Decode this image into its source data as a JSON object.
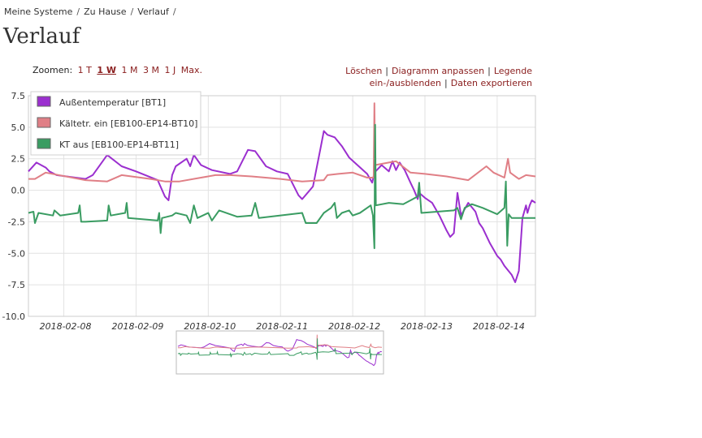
{
  "breadcrumb": [
    "Meine Systeme",
    "Zu Hause",
    "Verlauf"
  ],
  "page_title": "Verlauf",
  "zoom": {
    "label": "Zoomen:",
    "options": [
      "1 T",
      "1 W",
      "1 M",
      "3 M",
      "1 J",
      "Max."
    ],
    "active": "1 W"
  },
  "actions": [
    "Löschen",
    "Diagramm anpassen",
    "Legende ein-/ausblenden",
    "Daten exportieren"
  ],
  "colors": {
    "purple": "#9b2fcf",
    "pink": "#e07f86",
    "green": "#3a9c62",
    "link": "#8b2020"
  },
  "chart_data": {
    "type": "line",
    "title": "",
    "ylim": [
      -10,
      7.5
    ],
    "yticks": [
      "7.5",
      "5.0",
      "2.5",
      "0.0",
      "-2.5",
      "-5.0",
      "-7.5",
      "-10.0"
    ],
    "ytick_values": [
      7.5,
      5.0,
      2.5,
      0.0,
      -2.5,
      -5.0,
      -7.5,
      -10.0
    ],
    "xlim": [
      -0.49,
      6.53
    ],
    "xticks": [
      "2018-02-08",
      "2018-02-09",
      "2018-02-10",
      "2018-02-11",
      "2018-02-12",
      "2018-02-13",
      "2018-02-14"
    ],
    "xtick_values": [
      0,
      1,
      2,
      3,
      4,
      5,
      6
    ],
    "grid": true,
    "legend_position": "top-left",
    "series": [
      {
        "name": "Außentemperatur [BT1]",
        "color": "#9b2fcf",
        "points": [
          [
            -0.49,
            1.5
          ],
          [
            -0.38,
            2.2
          ],
          [
            -0.25,
            1.8
          ],
          [
            -0.2,
            1.5
          ],
          [
            -0.1,
            1.2
          ],
          [
            0.3,
            0.9
          ],
          [
            0.4,
            1.2
          ],
          [
            0.6,
            2.8
          ],
          [
            0.8,
            1.9
          ],
          [
            1.0,
            1.5
          ],
          [
            1.3,
            0.8
          ],
          [
            1.4,
            -0.5
          ],
          [
            1.45,
            -0.8
          ],
          [
            1.5,
            1.2
          ],
          [
            1.55,
            1.9
          ],
          [
            1.7,
            2.5
          ],
          [
            1.75,
            1.9
          ],
          [
            1.8,
            2.8
          ],
          [
            1.9,
            2.0
          ],
          [
            2.05,
            1.6
          ],
          [
            2.3,
            1.3
          ],
          [
            2.4,
            1.5
          ],
          [
            2.55,
            3.2
          ],
          [
            2.65,
            3.1
          ],
          [
            2.8,
            1.9
          ],
          [
            2.95,
            1.5
          ],
          [
            3.1,
            1.3
          ],
          [
            3.25,
            -0.4
          ],
          [
            3.3,
            -0.7
          ],
          [
            3.45,
            0.3
          ],
          [
            3.55,
            3.2
          ],
          [
            3.6,
            4.7
          ],
          [
            3.65,
            4.4
          ],
          [
            3.75,
            4.2
          ],
          [
            3.85,
            3.5
          ],
          [
            3.95,
            2.6
          ],
          [
            4.2,
            1.3
          ],
          [
            4.27,
            0.6
          ],
          [
            4.3,
            1.4
          ],
          [
            4.4,
            2.0
          ],
          [
            4.5,
            1.5
          ],
          [
            4.55,
            2.3
          ],
          [
            4.6,
            1.6
          ],
          [
            4.65,
            2.2
          ],
          [
            4.72,
            1.6
          ],
          [
            4.8,
            0.6
          ],
          [
            4.85,
            0.0
          ],
          [
            4.9,
            -0.7
          ],
          [
            4.92,
            -0.2
          ],
          [
            5.0,
            -0.6
          ],
          [
            5.1,
            -1.0
          ],
          [
            5.2,
            -2.0
          ],
          [
            5.3,
            -3.2
          ],
          [
            5.35,
            -3.7
          ],
          [
            5.4,
            -3.4
          ],
          [
            5.45,
            -0.2
          ],
          [
            5.5,
            -2.0
          ],
          [
            5.55,
            -1.5
          ],
          [
            5.6,
            -1.0
          ],
          [
            5.7,
            -1.7
          ],
          [
            5.75,
            -2.6
          ],
          [
            5.8,
            -3.0
          ],
          [
            5.9,
            -4.2
          ],
          [
            6.0,
            -5.2
          ],
          [
            6.05,
            -5.5
          ],
          [
            6.1,
            -6.0
          ],
          [
            6.2,
            -6.7
          ],
          [
            6.25,
            -7.3
          ],
          [
            6.3,
            -6.4
          ],
          [
            6.35,
            -2.2
          ],
          [
            6.4,
            -1.2
          ],
          [
            6.42,
            -1.8
          ],
          [
            6.45,
            -1.2
          ],
          [
            6.48,
            -0.8
          ],
          [
            6.53,
            -1.0
          ]
        ]
      },
      {
        "name": "Kältetr. ein [EB100-EP14-BT10]",
        "color": "#e07f86",
        "points": [
          [
            -0.49,
            0.9
          ],
          [
            -0.4,
            0.9
          ],
          [
            -0.25,
            1.4
          ],
          [
            0.3,
            0.8
          ],
          [
            0.6,
            0.7
          ],
          [
            0.8,
            1.2
          ],
          [
            1.2,
            0.9
          ],
          [
            1.4,
            0.7
          ],
          [
            1.6,
            0.7
          ],
          [
            1.9,
            1.0
          ],
          [
            2.1,
            1.2
          ],
          [
            2.3,
            1.2
          ],
          [
            2.6,
            1.1
          ],
          [
            3.0,
            0.9
          ],
          [
            3.3,
            0.7
          ],
          [
            3.6,
            0.8
          ],
          [
            3.65,
            1.2
          ],
          [
            3.8,
            1.3
          ],
          [
            4.0,
            1.4
          ],
          [
            4.2,
            1.0
          ],
          [
            4.29,
            1.0
          ],
          [
            4.3,
            6.9
          ],
          [
            4.31,
            2.0
          ],
          [
            4.5,
            2.2
          ],
          [
            4.6,
            2.3
          ],
          [
            4.8,
            1.4
          ],
          [
            5.0,
            1.3
          ],
          [
            5.3,
            1.1
          ],
          [
            5.6,
            0.8
          ],
          [
            5.85,
            1.9
          ],
          [
            5.95,
            1.4
          ],
          [
            6.1,
            1.0
          ],
          [
            6.15,
            2.5
          ],
          [
            6.18,
            1.4
          ],
          [
            6.3,
            0.9
          ],
          [
            6.4,
            1.2
          ],
          [
            6.53,
            1.1
          ]
        ]
      },
      {
        "name": "KT aus [EB100-EP14-BT11]",
        "color": "#3a9c62",
        "points": [
          [
            -0.49,
            -1.8
          ],
          [
            -0.42,
            -1.7
          ],
          [
            -0.4,
            -2.6
          ],
          [
            -0.35,
            -1.8
          ],
          [
            -0.15,
            -2.0
          ],
          [
            -0.13,
            -1.6
          ],
          [
            -0.05,
            -2.0
          ],
          [
            0.2,
            -1.8
          ],
          [
            0.22,
            -1.2
          ],
          [
            0.24,
            -2.5
          ],
          [
            0.3,
            -2.5
          ],
          [
            0.6,
            -2.4
          ],
          [
            0.62,
            -1.2
          ],
          [
            0.65,
            -2.0
          ],
          [
            0.85,
            -1.8
          ],
          [
            0.87,
            -1.0
          ],
          [
            0.89,
            -2.2
          ],
          [
            1.3,
            -2.4
          ],
          [
            1.32,
            -1.8
          ],
          [
            1.34,
            -3.4
          ],
          [
            1.36,
            -2.2
          ],
          [
            1.5,
            -2.0
          ],
          [
            1.55,
            -1.8
          ],
          [
            1.7,
            -2.0
          ],
          [
            1.75,
            -2.6
          ],
          [
            1.8,
            -1.2
          ],
          [
            1.85,
            -2.2
          ],
          [
            2.0,
            -1.8
          ],
          [
            2.05,
            -2.4
          ],
          [
            2.15,
            -1.6
          ],
          [
            2.4,
            -2.1
          ],
          [
            2.6,
            -2.0
          ],
          [
            2.65,
            -1.0
          ],
          [
            2.7,
            -2.2
          ],
          [
            3.3,
            -1.8
          ],
          [
            3.35,
            -2.6
          ],
          [
            3.5,
            -2.6
          ],
          [
            3.6,
            -1.8
          ],
          [
            3.7,
            -1.4
          ],
          [
            3.75,
            -1.0
          ],
          [
            3.78,
            -2.2
          ],
          [
            3.85,
            -1.8
          ],
          [
            3.95,
            -1.6
          ],
          [
            4.0,
            -2.0
          ],
          [
            4.1,
            -1.8
          ],
          [
            4.25,
            -1.2
          ],
          [
            4.28,
            -2.0
          ],
          [
            4.3,
            -4.6
          ],
          [
            4.31,
            5.2
          ],
          [
            4.32,
            -1.2
          ],
          [
            4.5,
            -1.0
          ],
          [
            4.7,
            -1.1
          ],
          [
            4.9,
            -0.5
          ],
          [
            4.92,
            0.6
          ],
          [
            4.95,
            -1.8
          ],
          [
            5.4,
            -1.6
          ],
          [
            5.45,
            -1.4
          ],
          [
            5.5,
            -2.3
          ],
          [
            5.55,
            -1.4
          ],
          [
            5.65,
            -1.1
          ],
          [
            5.8,
            -1.4
          ],
          [
            6.0,
            -1.9
          ],
          [
            6.1,
            -1.4
          ],
          [
            6.12,
            0.7
          ],
          [
            6.14,
            -4.4
          ],
          [
            6.16,
            -1.9
          ],
          [
            6.2,
            -2.2
          ],
          [
            6.53,
            -2.2
          ]
        ]
      }
    ]
  }
}
